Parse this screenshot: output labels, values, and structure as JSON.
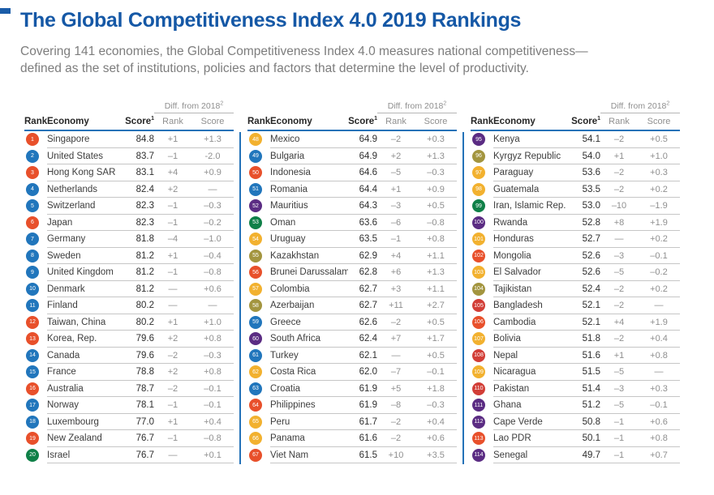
{
  "page": {
    "title": "The Global Competitiveness Index 4.0 2019 Rankings",
    "intro": "Covering 141 economies, the Global Competitiveness Index 4.0 measures national competitiveness—defined as the set of institutions, policies and factors that determine the level of productivity.",
    "accent_blue": "#1558A6"
  },
  "table": {
    "headers": {
      "rank": "Rank",
      "economy": "Economy",
      "score": "Score",
      "score_sup": "1",
      "diff_label": "Diff. from 2018",
      "diff_sup": "2",
      "diff_rank": "Rank",
      "diff_score": "Score"
    },
    "region_colors": {
      "east_asia": "#E8502B",
      "europe_na": "#2176BC",
      "mena": "#0F8048",
      "latam": "#F2B12F",
      "ssa": "#5B2C83",
      "eurasia": "#A3953F",
      "south_asia": "#D23E37"
    },
    "panels": [
      {
        "rows": [
          {
            "rank": "1",
            "economy": "Singapore",
            "score": "84.8",
            "diff_rank": "+1",
            "diff_score": "+1.3",
            "region": "east_asia"
          },
          {
            "rank": "2",
            "economy": "United States",
            "score": "83.7",
            "diff_rank": "–1",
            "diff_score": "-2.0",
            "region": "europe_na"
          },
          {
            "rank": "3",
            "economy": "Hong Kong SAR",
            "score": "83.1",
            "diff_rank": "+4",
            "diff_score": "+0.9",
            "region": "east_asia"
          },
          {
            "rank": "4",
            "economy": "Netherlands",
            "score": "82.4",
            "diff_rank": "+2",
            "diff_score": "—",
            "region": "europe_na"
          },
          {
            "rank": "5",
            "economy": "Switzerland",
            "score": "82.3",
            "diff_rank": "–1",
            "diff_score": "–0.3",
            "region": "europe_na"
          },
          {
            "rank": "6",
            "economy": "Japan",
            "score": "82.3",
            "diff_rank": "–1",
            "diff_score": "–0.2",
            "region": "east_asia"
          },
          {
            "rank": "7",
            "economy": "Germany",
            "score": "81.8",
            "diff_rank": "–4",
            "diff_score": "–1.0",
            "region": "europe_na"
          },
          {
            "rank": "8",
            "economy": "Sweden",
            "score": "81.2",
            "diff_rank": "+1",
            "diff_score": "–0.4",
            "region": "europe_na"
          },
          {
            "rank": "9",
            "economy": "United Kingdom",
            "score": "81.2",
            "diff_rank": "–1",
            "diff_score": "–0.8",
            "region": "europe_na"
          },
          {
            "rank": "10",
            "economy": "Denmark",
            "score": "81.2",
            "diff_rank": "—",
            "diff_score": "+0.6",
            "region": "europe_na"
          },
          {
            "rank": "11",
            "economy": "Finland",
            "score": "80.2",
            "diff_rank": "—",
            "diff_score": "—",
            "region": "europe_na"
          },
          {
            "rank": "12",
            "economy": "Taiwan, China",
            "score": "80.2",
            "diff_rank": "+1",
            "diff_score": "+1.0",
            "region": "east_asia"
          },
          {
            "rank": "13",
            "economy": "Korea, Rep.",
            "score": "79.6",
            "diff_rank": "+2",
            "diff_score": "+0.8",
            "region": "east_asia"
          },
          {
            "rank": "14",
            "economy": "Canada",
            "score": "79.6",
            "diff_rank": "–2",
            "diff_score": "–0.3",
            "region": "europe_na"
          },
          {
            "rank": "15",
            "economy": "France",
            "score": "78.8",
            "diff_rank": "+2",
            "diff_score": "+0.8",
            "region": "europe_na"
          },
          {
            "rank": "16",
            "economy": "Australia",
            "score": "78.7",
            "diff_rank": "–2",
            "diff_score": "–0.1",
            "region": "east_asia"
          },
          {
            "rank": "17",
            "economy": "Norway",
            "score": "78.1",
            "diff_rank": "–1",
            "diff_score": "–0.1",
            "region": "europe_na"
          },
          {
            "rank": "18",
            "economy": "Luxembourg",
            "score": "77.0",
            "diff_rank": "+1",
            "diff_score": "+0.4",
            "region": "europe_na"
          },
          {
            "rank": "19",
            "economy": "New Zealand",
            "score": "76.7",
            "diff_rank": "–1",
            "diff_score": "–0.8",
            "region": "east_asia"
          },
          {
            "rank": "20",
            "economy": "Israel",
            "score": "76.7",
            "diff_rank": "—",
            "diff_score": "+0.1",
            "region": "mena"
          }
        ]
      },
      {
        "rows": [
          {
            "rank": "48",
            "economy": "Mexico",
            "score": "64.9",
            "diff_rank": "–2",
            "diff_score": "+0.3",
            "region": "latam"
          },
          {
            "rank": "49",
            "economy": "Bulgaria",
            "score": "64.9",
            "diff_rank": "+2",
            "diff_score": "+1.3",
            "region": "europe_na"
          },
          {
            "rank": "50",
            "economy": "Indonesia",
            "score": "64.6",
            "diff_rank": "–5",
            "diff_score": "–0.3",
            "region": "east_asia"
          },
          {
            "rank": "51",
            "economy": "Romania",
            "score": "64.4",
            "diff_rank": "+1",
            "diff_score": "+0.9",
            "region": "europe_na"
          },
          {
            "rank": "52",
            "economy": "Mauritius",
            "score": "64.3",
            "diff_rank": "–3",
            "diff_score": "+0.5",
            "region": "ssa"
          },
          {
            "rank": "53",
            "economy": "Oman",
            "score": "63.6",
            "diff_rank": "–6",
            "diff_score": "–0.8",
            "region": "mena"
          },
          {
            "rank": "54",
            "economy": "Uruguay",
            "score": "63.5",
            "diff_rank": "–1",
            "diff_score": "+0.8",
            "region": "latam"
          },
          {
            "rank": "55",
            "economy": "Kazakhstan",
            "score": "62.9",
            "diff_rank": "+4",
            "diff_score": "+1.1",
            "region": "eurasia"
          },
          {
            "rank": "56",
            "economy": "Brunei Darussalam",
            "score": "62.8",
            "diff_rank": "+6",
            "diff_score": "+1.3",
            "region": "east_asia"
          },
          {
            "rank": "57",
            "economy": "Colombia",
            "score": "62.7",
            "diff_rank": "+3",
            "diff_score": "+1.1",
            "region": "latam"
          },
          {
            "rank": "58",
            "economy": "Azerbaijan",
            "score": "62.7",
            "diff_rank": "+11",
            "diff_score": "+2.7",
            "region": "eurasia"
          },
          {
            "rank": "59",
            "economy": "Greece",
            "score": "62.6",
            "diff_rank": "–2",
            "diff_score": "+0.5",
            "region": "europe_na"
          },
          {
            "rank": "60",
            "economy": "South Africa",
            "score": "62.4",
            "diff_rank": "+7",
            "diff_score": "+1.7",
            "region": "ssa"
          },
          {
            "rank": "61",
            "economy": "Turkey",
            "score": "62.1",
            "diff_rank": "—",
            "diff_score": "+0.5",
            "region": "europe_na"
          },
          {
            "rank": "62",
            "economy": "Costa Rica",
            "score": "62.0",
            "diff_rank": "–7",
            "diff_score": "–0.1",
            "region": "latam"
          },
          {
            "rank": "63",
            "economy": "Croatia",
            "score": "61.9",
            "diff_rank": "+5",
            "diff_score": "+1.8",
            "region": "europe_na"
          },
          {
            "rank": "64",
            "economy": "Philippines",
            "score": "61.9",
            "diff_rank": "–8",
            "diff_score": "–0.3",
            "region": "east_asia"
          },
          {
            "rank": "65",
            "economy": "Peru",
            "score": "61.7",
            "diff_rank": "–2",
            "diff_score": "+0.4",
            "region": "latam"
          },
          {
            "rank": "66",
            "economy": "Panama",
            "score": "61.6",
            "diff_rank": "–2",
            "diff_score": "+0.6",
            "region": "latam"
          },
          {
            "rank": "67",
            "economy": "Viet Nam",
            "score": "61.5",
            "diff_rank": "+10",
            "diff_score": "+3.5",
            "region": "east_asia"
          }
        ]
      },
      {
        "rows": [
          {
            "rank": "95",
            "economy": "Kenya",
            "score": "54.1",
            "diff_rank": "–2",
            "diff_score": "+0.5",
            "region": "ssa"
          },
          {
            "rank": "96",
            "economy": "Kyrgyz Republic",
            "score": "54.0",
            "diff_rank": "+1",
            "diff_score": "+1.0",
            "region": "eurasia"
          },
          {
            "rank": "97",
            "economy": "Paraguay",
            "score": "53.6",
            "diff_rank": "–2",
            "diff_score": "+0.3",
            "region": "latam"
          },
          {
            "rank": "98",
            "economy": "Guatemala",
            "score": "53.5",
            "diff_rank": "–2",
            "diff_score": "+0.2",
            "region": "latam"
          },
          {
            "rank": "99",
            "economy": "Iran, Islamic Rep.",
            "score": "53.0",
            "diff_rank": "–10",
            "diff_score": "–1.9",
            "region": "mena"
          },
          {
            "rank": "100",
            "economy": "Rwanda",
            "score": "52.8",
            "diff_rank": "+8",
            "diff_score": "+1.9",
            "region": "ssa"
          },
          {
            "rank": "101",
            "economy": "Honduras",
            "score": "52.7",
            "diff_rank": "—",
            "diff_score": "+0.2",
            "region": "latam"
          },
          {
            "rank": "102",
            "economy": "Mongolia",
            "score": "52.6",
            "diff_rank": "–3",
            "diff_score": "–0.1",
            "region": "east_asia"
          },
          {
            "rank": "103",
            "economy": "El Salvador",
            "score": "52.6",
            "diff_rank": "–5",
            "diff_score": "–0.2",
            "region": "latam"
          },
          {
            "rank": "104",
            "economy": "Tajikistan",
            "score": "52.4",
            "diff_rank": "–2",
            "diff_score": "+0.2",
            "region": "eurasia"
          },
          {
            "rank": "105",
            "economy": "Bangladesh",
            "score": "52.1",
            "diff_rank": "–2",
            "diff_score": "—",
            "region": "south_asia"
          },
          {
            "rank": "106",
            "economy": "Cambodia",
            "score": "52.1",
            "diff_rank": "+4",
            "diff_score": "+1.9",
            "region": "east_asia"
          },
          {
            "rank": "107",
            "economy": "Bolivia",
            "score": "51.8",
            "diff_rank": "–2",
            "diff_score": "+0.4",
            "region": "latam"
          },
          {
            "rank": "108",
            "economy": "Nepal",
            "score": "51.6",
            "diff_rank": "+1",
            "diff_score": "+0.8",
            "region": "south_asia"
          },
          {
            "rank": "109",
            "economy": "Nicaragua",
            "score": "51.5",
            "diff_rank": "–5",
            "diff_score": "—",
            "region": "latam"
          },
          {
            "rank": "110",
            "economy": "Pakistan",
            "score": "51.4",
            "diff_rank": "–3",
            "diff_score": "+0.3",
            "region": "south_asia"
          },
          {
            "rank": "111",
            "economy": "Ghana",
            "score": "51.2",
            "diff_rank": "–5",
            "diff_score": "–0.1",
            "region": "ssa"
          },
          {
            "rank": "112",
            "economy": "Cape Verde",
            "score": "50.8",
            "diff_rank": "–1",
            "diff_score": "+0.6",
            "region": "ssa"
          },
          {
            "rank": "113",
            "economy": "Lao PDR",
            "score": "50.1",
            "diff_rank": "–1",
            "diff_score": "+0.8",
            "region": "east_asia"
          },
          {
            "rank": "114",
            "economy": "Senegal",
            "score": "49.7",
            "diff_rank": "–1",
            "diff_score": "+0.7",
            "region": "ssa"
          }
        ]
      }
    ]
  }
}
